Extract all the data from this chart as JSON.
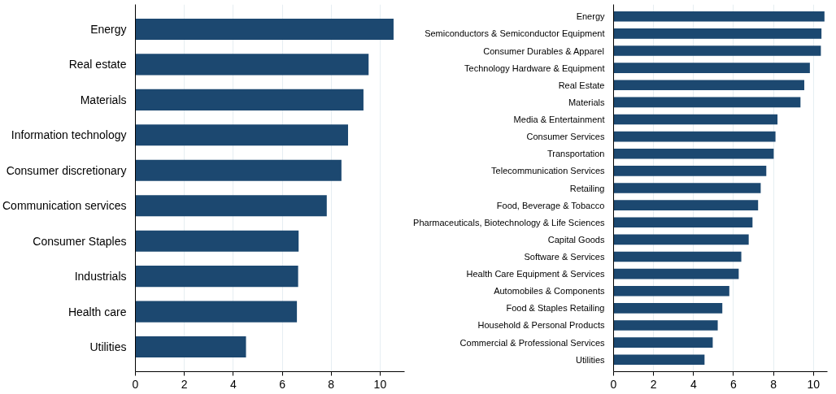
{
  "chart_data": [
    {
      "type": "bar",
      "orientation": "horizontal",
      "categories": [
        "Energy",
        "Real estate",
        "Materials",
        "Information technology",
        "Consumer discretionary",
        "Communication services",
        "Consumer Staples",
        "Industrials",
        "Health care",
        "Utilities"
      ],
      "values": [
        10.55,
        9.53,
        9.32,
        8.69,
        8.42,
        7.82,
        6.67,
        6.65,
        6.6,
        4.52
      ],
      "color": "#1c4870",
      "xlim": [
        0,
        11.0
      ],
      "xticks": [
        0,
        2,
        4,
        6,
        8,
        10
      ],
      "grid": "x"
    },
    {
      "type": "bar",
      "orientation": "horizontal",
      "categories": [
        "Energy",
        "Semiconductors & Semiconductor Equipment",
        "Consumer Durables & Apparel",
        "Technology Hardware & Equipment",
        "Real Estate",
        "Materials",
        "Media & Entertainment",
        "Consumer Services",
        "Transportation",
        "Telecommunication Services",
        "Retailing",
        "Food, Beverage & Tobacco",
        "Pharmaceuticals, Biotechnology & Life Sciences",
        "Capital Goods",
        "Software & Services",
        "Health Care Equipment & Services",
        "Automobiles & Components",
        "Food & Staples Retailing",
        "Household & Personal Products",
        "Commercial & Professional Services",
        "Utilities"
      ],
      "values": [
        10.55,
        10.4,
        10.37,
        9.82,
        9.54,
        9.35,
        8.2,
        8.1,
        8.01,
        7.64,
        7.36,
        7.23,
        6.95,
        6.76,
        6.39,
        6.26,
        5.79,
        5.44,
        5.21,
        4.96,
        4.55
      ],
      "color": "#1c4870",
      "xlim": [
        0,
        10.7
      ],
      "xticks": [
        0,
        2,
        4,
        6,
        8,
        10
      ],
      "grid": "x"
    }
  ]
}
